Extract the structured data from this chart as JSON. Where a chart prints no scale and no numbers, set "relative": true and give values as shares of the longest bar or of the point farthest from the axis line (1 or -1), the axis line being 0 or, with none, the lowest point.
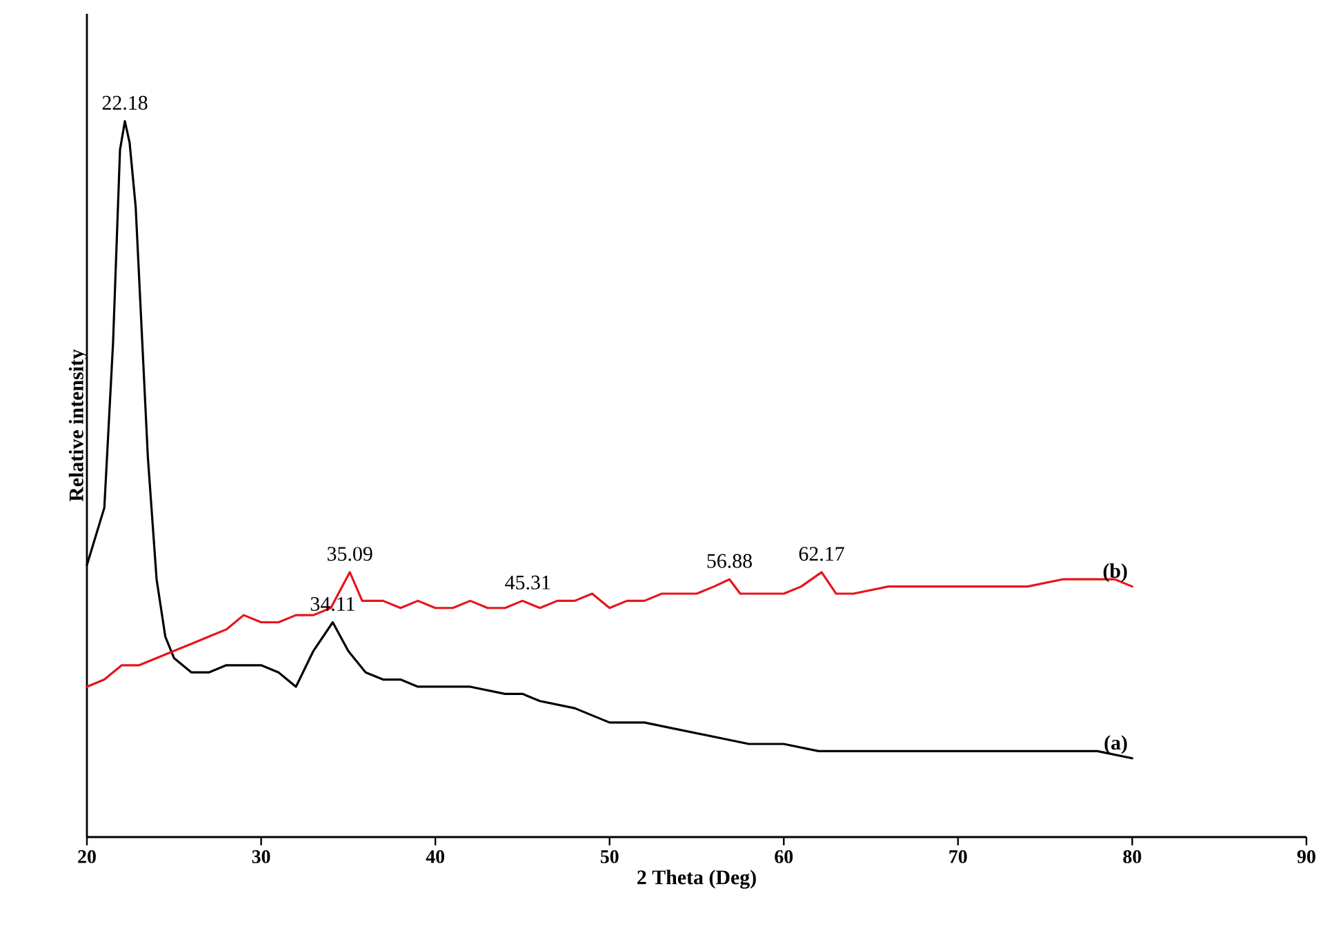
{
  "chart_data": {
    "type": "line",
    "relative": true,
    "xlabel": "2 Theta (Deg)",
    "ylabel": "Relative intensity",
    "xlim": [
      20,
      90
    ],
    "xticks": [
      20,
      30,
      40,
      50,
      60,
      70,
      80,
      90
    ],
    "tick_labels": "x",
    "grid": false,
    "legend": false,
    "marker": "none",
    "line_style": "solid",
    "series": [
      {
        "name": "(a)",
        "color": "#000000",
        "x": [
          20,
          21,
          21.5,
          21.9,
          22.18,
          22.45,
          22.8,
          23.5,
          24,
          24.5,
          25,
          26,
          27,
          28,
          29,
          30,
          31,
          32,
          33,
          34.11,
          35,
          36,
          37,
          38,
          39,
          40,
          41,
          42,
          44,
          45,
          46,
          48,
          50,
          52,
          54,
          56,
          58,
          60,
          62,
          64,
          66,
          68,
          70,
          72,
          74,
          76,
          78,
          80
        ],
        "values": [
          0.38,
          0.46,
          0.69,
          0.96,
          1.0,
          0.97,
          0.88,
          0.53,
          0.36,
          0.28,
          0.25,
          0.23,
          0.23,
          0.24,
          0.24,
          0.24,
          0.23,
          0.21,
          0.26,
          0.3,
          0.26,
          0.23,
          0.22,
          0.22,
          0.21,
          0.21,
          0.21,
          0.21,
          0.2,
          0.2,
          0.19,
          0.18,
          0.16,
          0.16,
          0.15,
          0.14,
          0.13,
          0.13,
          0.12,
          0.12,
          0.12,
          0.12,
          0.12,
          0.12,
          0.12,
          0.12,
          0.12,
          0.11
        ]
      },
      {
        "name": "(b)",
        "color": "#e8131b",
        "x": [
          20,
          21,
          22,
          23,
          24,
          25,
          26,
          27,
          28,
          29,
          30,
          31,
          32,
          33,
          34,
          35.09,
          35.8,
          37,
          38,
          39,
          40,
          41,
          42,
          43,
          44,
          45,
          46,
          47,
          48,
          49,
          50,
          51,
          52,
          53,
          54,
          55,
          56,
          56.88,
          57.5,
          58,
          59,
          60,
          61,
          62.17,
          63,
          64,
          66,
          68,
          70,
          72,
          74,
          76,
          78,
          79,
          80
        ],
        "values": [
          0.21,
          0.22,
          0.24,
          0.24,
          0.25,
          0.26,
          0.27,
          0.28,
          0.29,
          0.31,
          0.3,
          0.3,
          0.31,
          0.31,
          0.32,
          0.37,
          0.33,
          0.33,
          0.32,
          0.33,
          0.32,
          0.32,
          0.33,
          0.32,
          0.32,
          0.33,
          0.32,
          0.33,
          0.33,
          0.34,
          0.32,
          0.33,
          0.33,
          0.34,
          0.34,
          0.34,
          0.35,
          0.36,
          0.34,
          0.34,
          0.34,
          0.34,
          0.35,
          0.37,
          0.34,
          0.34,
          0.35,
          0.35,
          0.35,
          0.35,
          0.35,
          0.36,
          0.36,
          0.36,
          0.35
        ]
      }
    ],
    "annotations": [
      {
        "text": "22.18",
        "x": 22.18,
        "y": 1.0
      },
      {
        "text": "35.09",
        "x": 35.09,
        "y": 0.37
      },
      {
        "text": "34.11",
        "x": 34.11,
        "y": 0.3
      },
      {
        "text": "45.31",
        "x": 45.31,
        "y": 0.33
      },
      {
        "text": "56.88",
        "x": 56.88,
        "y": 0.36
      },
      {
        "text": "62.17",
        "x": 62.17,
        "y": 0.37
      }
    ]
  }
}
